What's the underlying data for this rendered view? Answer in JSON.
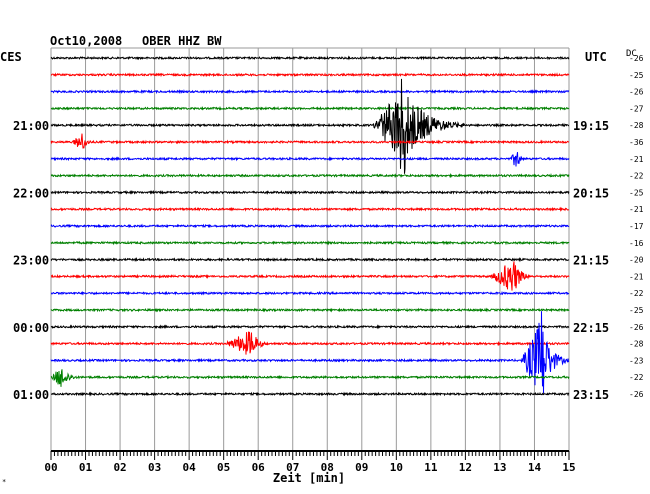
{
  "header": {
    "date": "Oct10,2008",
    "station": "OBER HHZ BW",
    "left_tz": "CES",
    "right_tz": "UTC",
    "dc_label": "DC"
  },
  "chart_data": {
    "type": "line",
    "title": "Oct10,2008   OBER HHZ BW",
    "xlabel": "Zeit [min]",
    "ylabel": "",
    "xlim": [
      0,
      15
    ],
    "x_ticks": [
      "00",
      "01",
      "02",
      "03",
      "04",
      "05",
      "06",
      "07",
      "08",
      "09",
      "10",
      "11",
      "12",
      "13",
      "14",
      "15"
    ],
    "grid": true,
    "trace_colors": [
      "#000000",
      "#ff0000",
      "#0000ff",
      "#008000"
    ],
    "dc_values": [
      "26",
      "25",
      "26",
      "27",
      "28",
      "36",
      "21",
      "22",
      "25",
      "21",
      "17",
      "16",
      "20",
      "21",
      "22",
      "25",
      "26",
      "28",
      "23",
      "22",
      "26"
    ],
    "left_labels": [
      {
        "trace": 4,
        "text": "21:00"
      },
      {
        "trace": 8,
        "text": "22:00"
      },
      {
        "trace": 12,
        "text": "23:00"
      },
      {
        "trace": 16,
        "text": "00:00"
      },
      {
        "trace": 20,
        "text": "01:00"
      }
    ],
    "right_labels": [
      {
        "trace": 4,
        "text": "19:15"
      },
      {
        "trace": 8,
        "text": "20:15"
      },
      {
        "trace": 12,
        "text": "21:15"
      },
      {
        "trace": 16,
        "text": "22:15"
      },
      {
        "trace": 20,
        "text": "23:15"
      }
    ],
    "events": [
      {
        "trace": 4,
        "start_min": 9.3,
        "peak_min": 10.2,
        "end_min": 12.0,
        "amplitude": 1.0
      },
      {
        "trace": 5,
        "start_min": 0.6,
        "peak_min": 0.9,
        "end_min": 1.3,
        "amplitude": 0.25
      },
      {
        "trace": 6,
        "start_min": 13.3,
        "peak_min": 13.5,
        "end_min": 13.7,
        "amplitude": 0.3
      },
      {
        "trace": 13,
        "start_min": 12.7,
        "peak_min": 13.4,
        "end_min": 14.0,
        "amplitude": 0.45
      },
      {
        "trace": 17,
        "start_min": 5.0,
        "peak_min": 5.8,
        "end_min": 6.4,
        "amplitude": 0.35
      },
      {
        "trace": 18,
        "start_min": 13.6,
        "peak_min": 14.2,
        "end_min": 15.0,
        "amplitude": 1.0
      },
      {
        "trace": 19,
        "start_min": 0.0,
        "peak_min": 0.3,
        "end_min": 0.9,
        "amplitude": 0.3
      }
    ]
  }
}
